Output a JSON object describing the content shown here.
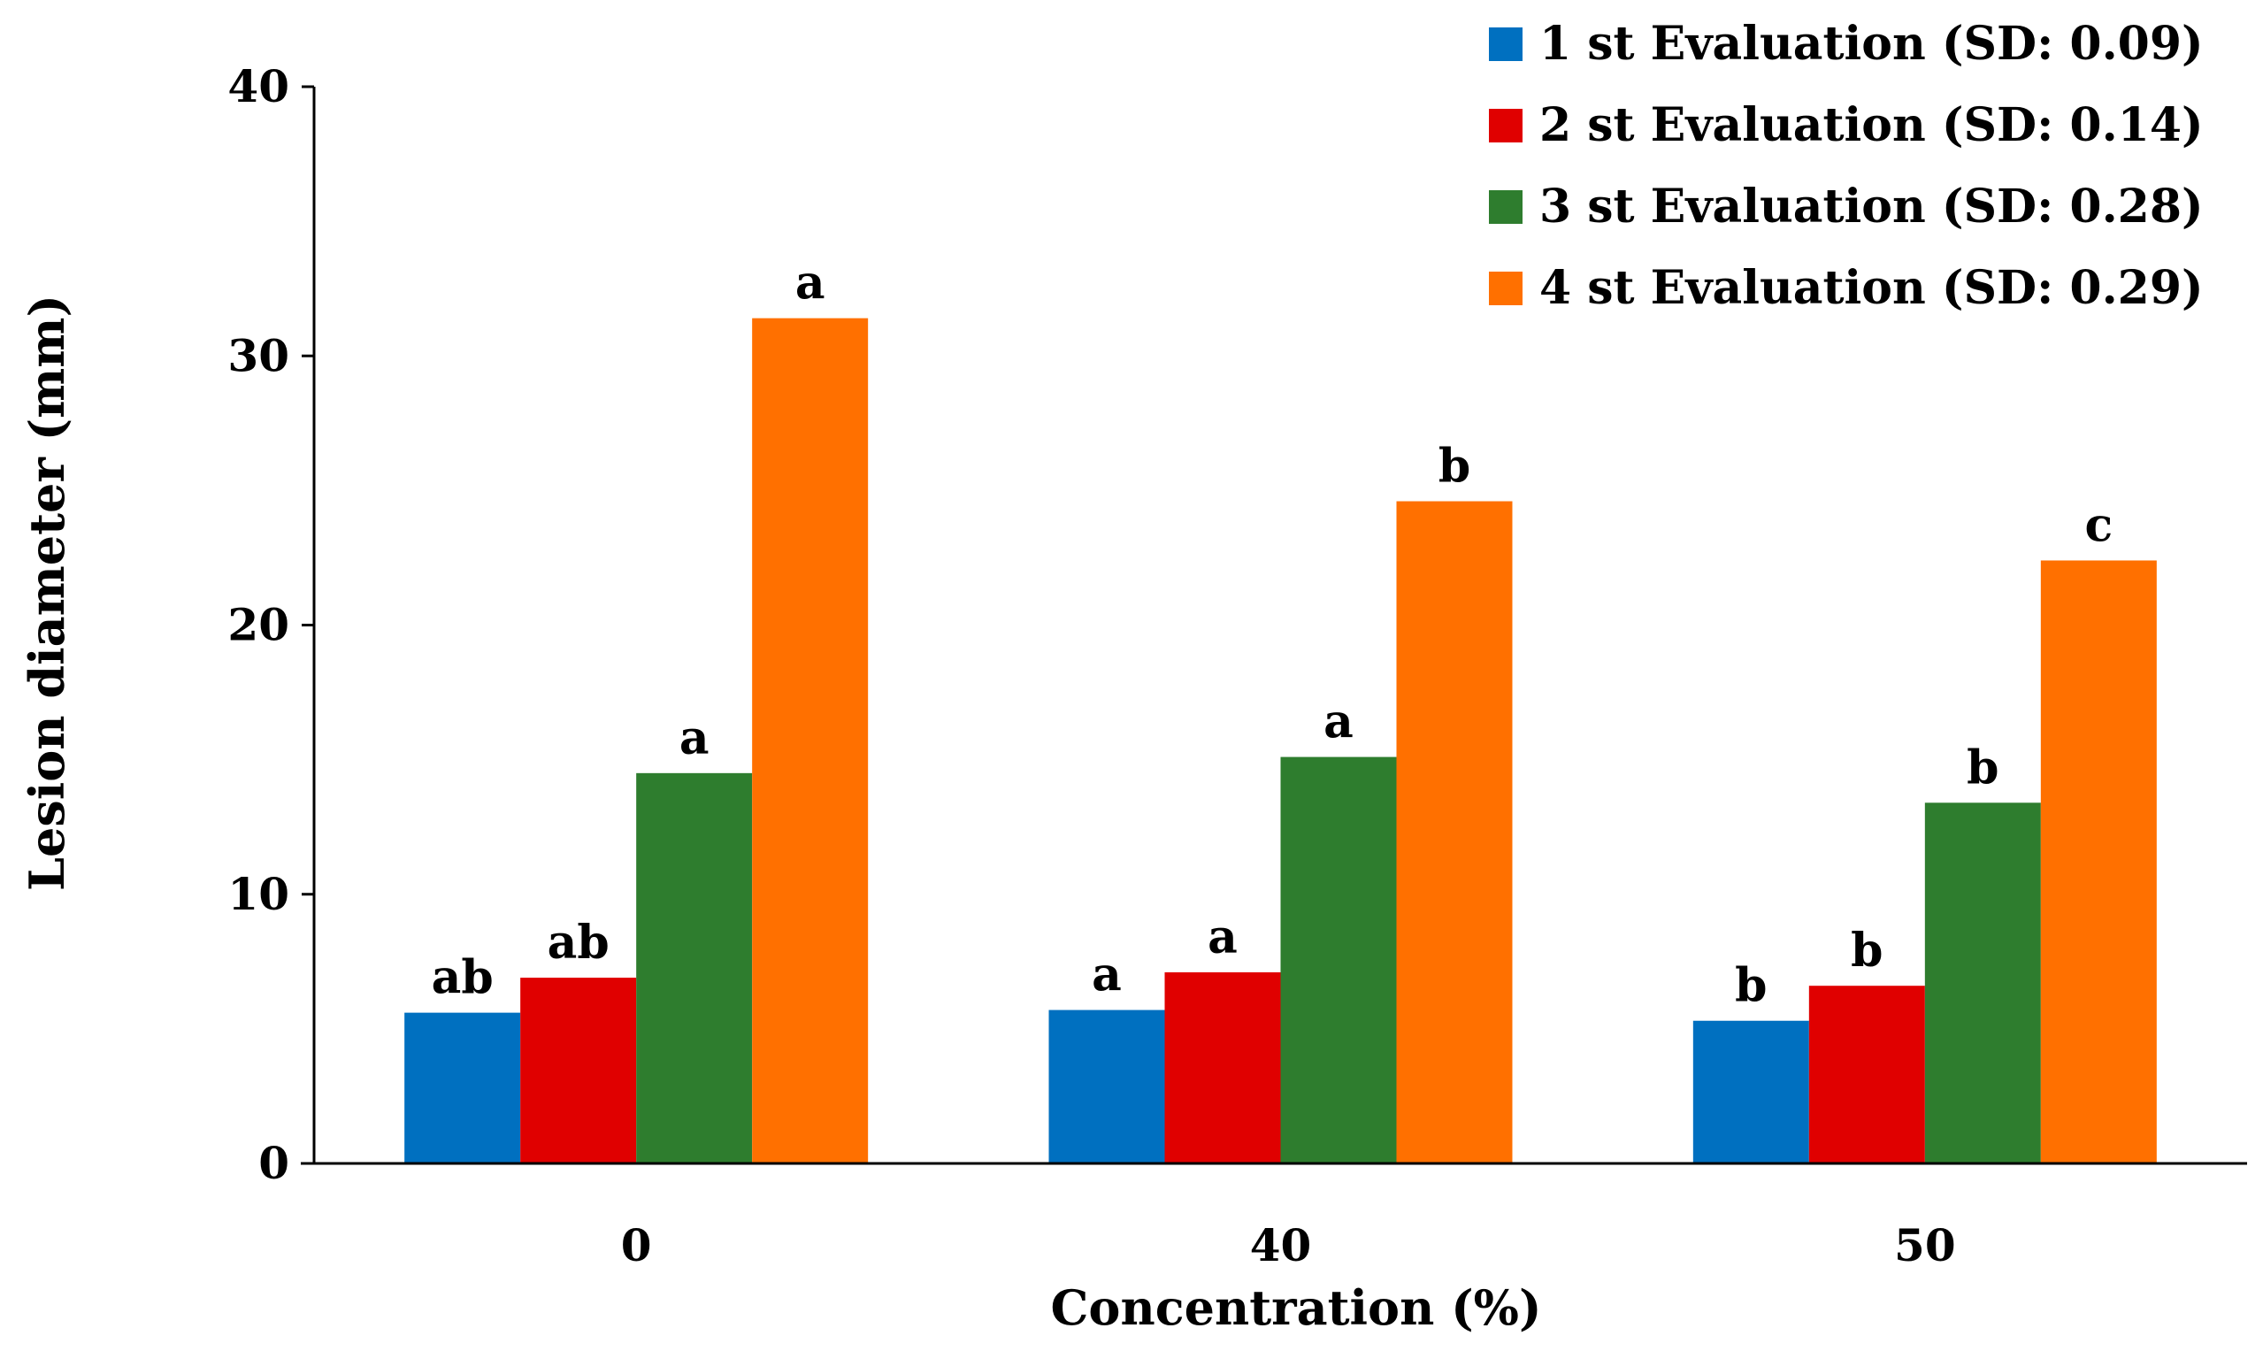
{
  "chart_data": {
    "type": "bar",
    "title": "",
    "xlabel": "Concentration (%)",
    "ylabel": "Lesion diameter  (mm)",
    "ylim": [
      0,
      40
    ],
    "yticks": [
      0,
      10,
      20,
      30,
      40
    ],
    "categories": [
      "0",
      "40",
      "50"
    ],
    "series": [
      {
        "name": "1 st Evaluation (SD: 0.09)",
        "color": "#0070C0",
        "values": [
          5.6,
          5.7,
          5.3
        ],
        "labels": [
          "ab",
          "a",
          "b"
        ]
      },
      {
        "name": "2 st Evaluation (SD: 0.14)",
        "color": "#E00000",
        "values": [
          6.9,
          7.1,
          6.6
        ],
        "labels": [
          "ab",
          "a",
          "b"
        ]
      },
      {
        "name": "3 st Evaluation (SD: 0.28)",
        "color": "#2E7D2E",
        "values": [
          14.5,
          15.1,
          13.4
        ],
        "labels": [
          "a",
          "a",
          "b"
        ]
      },
      {
        "name": "4 st Evaluation (SD: 0.29)",
        "color": "#FF7000",
        "values": [
          31.4,
          24.6,
          22.4
        ],
        "labels": [
          "a",
          "b",
          "c"
        ]
      }
    ],
    "legend_position": "top-right",
    "grid": false
  }
}
